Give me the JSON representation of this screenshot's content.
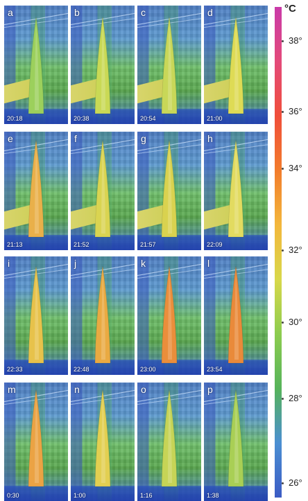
{
  "legend": {
    "unit": "°C",
    "ticks": [
      "38°",
      "36°",
      "34°",
      "32°",
      "30°",
      "28°",
      "26°"
    ],
    "gradient_colors": [
      "#c93aa9",
      "#e34a7a",
      "#f04e3a",
      "#f27c2c",
      "#f3b73c",
      "#d8d84a",
      "#8ccc4f",
      "#56b35a",
      "#4b8fd2",
      "#3b5bc4"
    ]
  },
  "panels": [
    {
      "letter": "a",
      "time": "20:18",
      "leaf_color": "#9cd05c",
      "roof": true
    },
    {
      "letter": "b",
      "time": "20:38",
      "leaf_color": "#c9d955",
      "roof": true
    },
    {
      "letter": "c",
      "time": "20:54",
      "leaf_color": "#c8d758",
      "roof": true
    },
    {
      "letter": "d",
      "time": "21:00",
      "leaf_color": "#dedb55",
      "roof": true
    },
    {
      "letter": "e",
      "time": "21:13",
      "leaf_color": "#e9b04a",
      "roof": true
    },
    {
      "letter": "f",
      "time": "21:52",
      "leaf_color": "#d9d451",
      "roof": true
    },
    {
      "letter": "g",
      "time": "21:57",
      "leaf_color": "#d9d24f",
      "roof": true
    },
    {
      "letter": "h",
      "time": "22:09",
      "leaf_color": "#e2db60",
      "roof": true
    },
    {
      "letter": "i",
      "time": "22:33",
      "leaf_color": "#e7c24b",
      "roof": false
    },
    {
      "letter": "j",
      "time": "22:48",
      "leaf_color": "#e9aa42",
      "roof": false
    },
    {
      "letter": "k",
      "time": "23:00",
      "leaf_color": "#ea8e3b",
      "roof": false
    },
    {
      "letter": "l",
      "time": "23:54",
      "leaf_color": "#e98a3a",
      "roof": false
    },
    {
      "letter": "m",
      "time": "0:30",
      "leaf_color": "#eba344",
      "roof": false
    },
    {
      "letter": "n",
      "time": "1:00",
      "leaf_color": "#e2cf51",
      "roof": false
    },
    {
      "letter": "o",
      "time": "1:16",
      "leaf_color": "#c6d456",
      "roof": false
    },
    {
      "letter": "p",
      "time": "1:38",
      "leaf_color": "#a9cf55",
      "roof": false
    }
  ]
}
